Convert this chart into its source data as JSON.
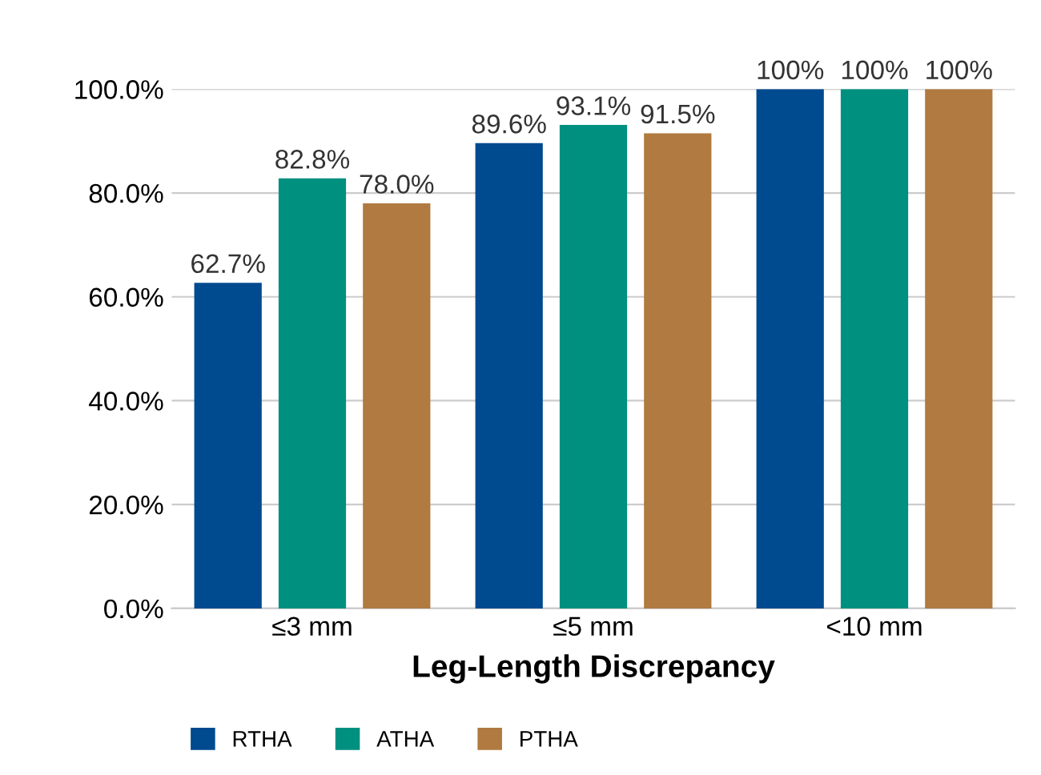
{
  "chart_data": {
    "type": "bar",
    "xlabel": "Leg-Length Discrepancy",
    "categories": [
      "≤3 mm",
      "≤5 mm",
      "<10 mm"
    ],
    "series": [
      {
        "name": "RTHA",
        "color": "#004a8f",
        "values": [
          62.7,
          89.6,
          100
        ],
        "value_labels": [
          "62.7%",
          "89.6%",
          "100%"
        ]
      },
      {
        "name": "ATHA",
        "color": "#00907f",
        "values": [
          82.8,
          93.1,
          100
        ],
        "value_labels": [
          "82.8%",
          "93.1%",
          "100%"
        ]
      },
      {
        "name": "PTHA",
        "color": "#b07a40",
        "values": [
          78.0,
          91.5,
          100
        ],
        "value_labels": [
          "78.0%",
          "91.5%",
          "100%"
        ]
      }
    ],
    "ylim": [
      0,
      100
    ],
    "yticks": [
      {
        "value": 0,
        "label": "0.0%"
      },
      {
        "value": 20,
        "label": "20.0%"
      },
      {
        "value": 40,
        "label": "40.0%"
      },
      {
        "value": 60,
        "label": "60.0%"
      },
      {
        "value": 80,
        "label": "80.0%"
      },
      {
        "value": 100,
        "label": "100.0%"
      }
    ],
    "grid": "y",
    "legend": "bottom left"
  }
}
